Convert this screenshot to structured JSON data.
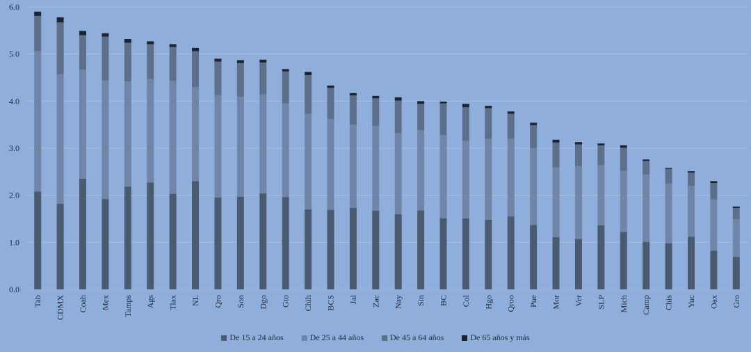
{
  "chart_data": {
    "type": "bar",
    "stacked": true,
    "categories": [
      "Tab",
      "CDMX",
      "Coah",
      "Mex",
      "Tamps",
      "Ags",
      "Tlax",
      "NL",
      "Qro",
      "Son",
      "Dgo",
      "Gto",
      "Chih",
      "BCS",
      "Jal",
      "Zac",
      "Nay",
      "Sin",
      "BC",
      "Col",
      "Hgo",
      "Qroo",
      "Pue",
      "Mor",
      "Ver",
      "SLP",
      "Mich",
      "Camp",
      "Chis",
      "Yuc",
      "Oax",
      "Gro"
    ],
    "series": [
      {
        "name": "De 15 a 24 años",
        "color": "#4a5a70",
        "values": [
          2.08,
          1.82,
          2.35,
          1.92,
          2.18,
          2.27,
          2.03,
          2.3,
          1.95,
          1.97,
          2.04,
          1.96,
          1.7,
          1.69,
          1.73,
          1.67,
          1.6,
          1.68,
          1.51,
          1.51,
          1.48,
          1.55,
          1.37,
          1.11,
          1.07,
          1.36,
          1.22,
          1.01,
          0.98,
          1.12,
          0.82,
          0.69
        ]
      },
      {
        "name": "De 25 a 44 años",
        "color": "#7085a8",
        "values": [
          2.98,
          2.75,
          2.32,
          2.52,
          2.24,
          2.2,
          2.4,
          2.0,
          2.18,
          2.12,
          2.1,
          1.99,
          2.03,
          1.93,
          1.77,
          1.8,
          1.72,
          1.7,
          1.77,
          1.65,
          1.72,
          1.65,
          1.63,
          1.48,
          1.55,
          1.28,
          1.3,
          1.43,
          1.27,
          1.08,
          1.09,
          0.8
        ]
      },
      {
        "name": "De 45 a 64 años",
        "color": "#5e6f8c",
        "values": [
          0.75,
          1.1,
          0.73,
          0.93,
          0.82,
          0.74,
          0.72,
          0.76,
          0.71,
          0.72,
          0.68,
          0.68,
          0.82,
          0.66,
          0.62,
          0.59,
          0.69,
          0.56,
          0.67,
          0.71,
          0.65,
          0.53,
          0.49,
          0.53,
          0.46,
          0.42,
          0.49,
          0.29,
          0.31,
          0.28,
          0.35,
          0.24
        ]
      },
      {
        "name": "De 65 años y más",
        "color": "#1c2433",
        "values": [
          0.09,
          0.11,
          0.09,
          0.07,
          0.08,
          0.06,
          0.06,
          0.07,
          0.06,
          0.06,
          0.06,
          0.05,
          0.07,
          0.05,
          0.05,
          0.05,
          0.07,
          0.06,
          0.04,
          0.07,
          0.05,
          0.05,
          0.05,
          0.06,
          0.05,
          0.04,
          0.05,
          0.03,
          0.02,
          0.03,
          0.04,
          0.03
        ]
      }
    ],
    "ylim": [
      0,
      6.0
    ],
    "yticks": [
      "0.0",
      "1.0",
      "2.0",
      "3.0",
      "4.0",
      "5.0",
      "6.0"
    ],
    "grid": true,
    "legend_position": "bottom",
    "title": "",
    "xlabel": "",
    "ylabel": ""
  }
}
